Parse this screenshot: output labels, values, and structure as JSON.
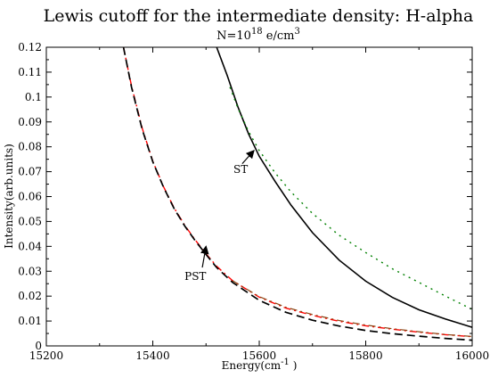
{
  "chart_data": {
    "type": "line",
    "title": "Lewis cutoff for the intermediate density: H-alpha",
    "subtitle": {
      "prefix": "N=10",
      "exponent": "18",
      "suffix": " e/cm",
      "suffix_exponent": "3"
    },
    "xlabel": {
      "text": "Energy(cm",
      "exponent": "-1",
      "close": " )"
    },
    "ylabel": "Intensity(arb.units)",
    "xlim": [
      15200,
      16000
    ],
    "ylim": [
      0,
      0.12
    ],
    "xticks": [
      "15200",
      "15400",
      "15600",
      "15800",
      "16000"
    ],
    "yticks": [
      "0",
      "0.01",
      "0.02",
      "0.03",
      "0.04",
      "0.05",
      "0.06",
      "0.07",
      "0.08",
      "0.09",
      "0.1",
      "0.11",
      "0.12"
    ],
    "grid": false,
    "series": [
      {
        "color": "#000000",
        "dash": "none",
        "width": 1.6,
        "x": [
          15520,
          15540,
          15560,
          15580,
          15600,
          15630,
          15660,
          15700,
          15750,
          15800,
          15850,
          15900,
          15950,
          16000
        ],
        "y": [
          0.12,
          0.1085,
          0.096,
          0.0852,
          0.0762,
          0.066,
          0.0565,
          0.0455,
          0.0345,
          0.026,
          0.0195,
          0.0145,
          0.0108,
          0.0075
        ]
      },
      {
        "color": "#008000",
        "dash": "2,5",
        "width": 1.4,
        "x": [
          15545,
          15560,
          15580,
          15600,
          15630,
          15660,
          15700,
          15750,
          15800,
          15850,
          15900,
          15950,
          16000
        ],
        "y": [
          0.104,
          0.0955,
          0.0862,
          0.0785,
          0.0695,
          0.0618,
          0.0532,
          0.0445,
          0.0375,
          0.031,
          0.0255,
          0.02,
          0.0147
        ]
      },
      {
        "color": "#ff0000",
        "dash": "8,4,2,4",
        "width": 1.4,
        "x": [
          15345,
          15360,
          15380,
          15400,
          15420,
          15440,
          15460,
          15480,
          15500,
          15520,
          15550,
          15600,
          15650,
          15700,
          15750,
          15800,
          15850,
          15900,
          15950,
          16000
        ],
        "y": [
          0.12,
          0.1045,
          0.0875,
          0.0742,
          0.064,
          0.0555,
          0.0485,
          0.0425,
          0.037,
          0.032,
          0.0262,
          0.0196,
          0.0152,
          0.0123,
          0.0099,
          0.0081,
          0.0067,
          0.0055,
          0.0045,
          0.0037
        ]
      },
      {
        "color": "#8b4513",
        "dash": "8,4,2,4",
        "width": 1.2,
        "x": [
          15550,
          15600,
          15650,
          15700,
          15750,
          15800,
          15850,
          15900,
          15950,
          16000
        ],
        "y": [
          0.0262,
          0.0198,
          0.0155,
          0.0126,
          0.0102,
          0.0084,
          0.0069,
          0.0057,
          0.0046,
          0.0038
        ]
      },
      {
        "color": "#000000",
        "dash": "9,5",
        "width": 1.7,
        "x": [
          15345,
          15360,
          15380,
          15400,
          15420,
          15440,
          15460,
          15480,
          15500,
          15520,
          15550,
          15600,
          15650,
          15700,
          15750,
          15800,
          15850,
          15900,
          15950,
          16000
        ],
        "y": [
          0.12,
          0.104,
          0.087,
          0.074,
          0.0638,
          0.0552,
          0.0482,
          0.0422,
          0.0367,
          0.0315,
          0.0255,
          0.0183,
          0.0135,
          0.0103,
          0.008,
          0.0062,
          0.0049,
          0.0039,
          0.003,
          0.0023
        ]
      }
    ],
    "annotations": [
      {
        "text": "ST",
        "text_x": 15565,
        "text_y": 0.0695,
        "arrow_from": [
          15568,
          0.0732
        ],
        "arrow_to": [
          15590,
          0.0785
        ]
      },
      {
        "text": "PST",
        "text_x": 15480,
        "text_y": 0.0265,
        "arrow_from": [
          15493,
          0.0315
        ],
        "arrow_to": [
          15500,
          0.04
        ]
      }
    ]
  }
}
